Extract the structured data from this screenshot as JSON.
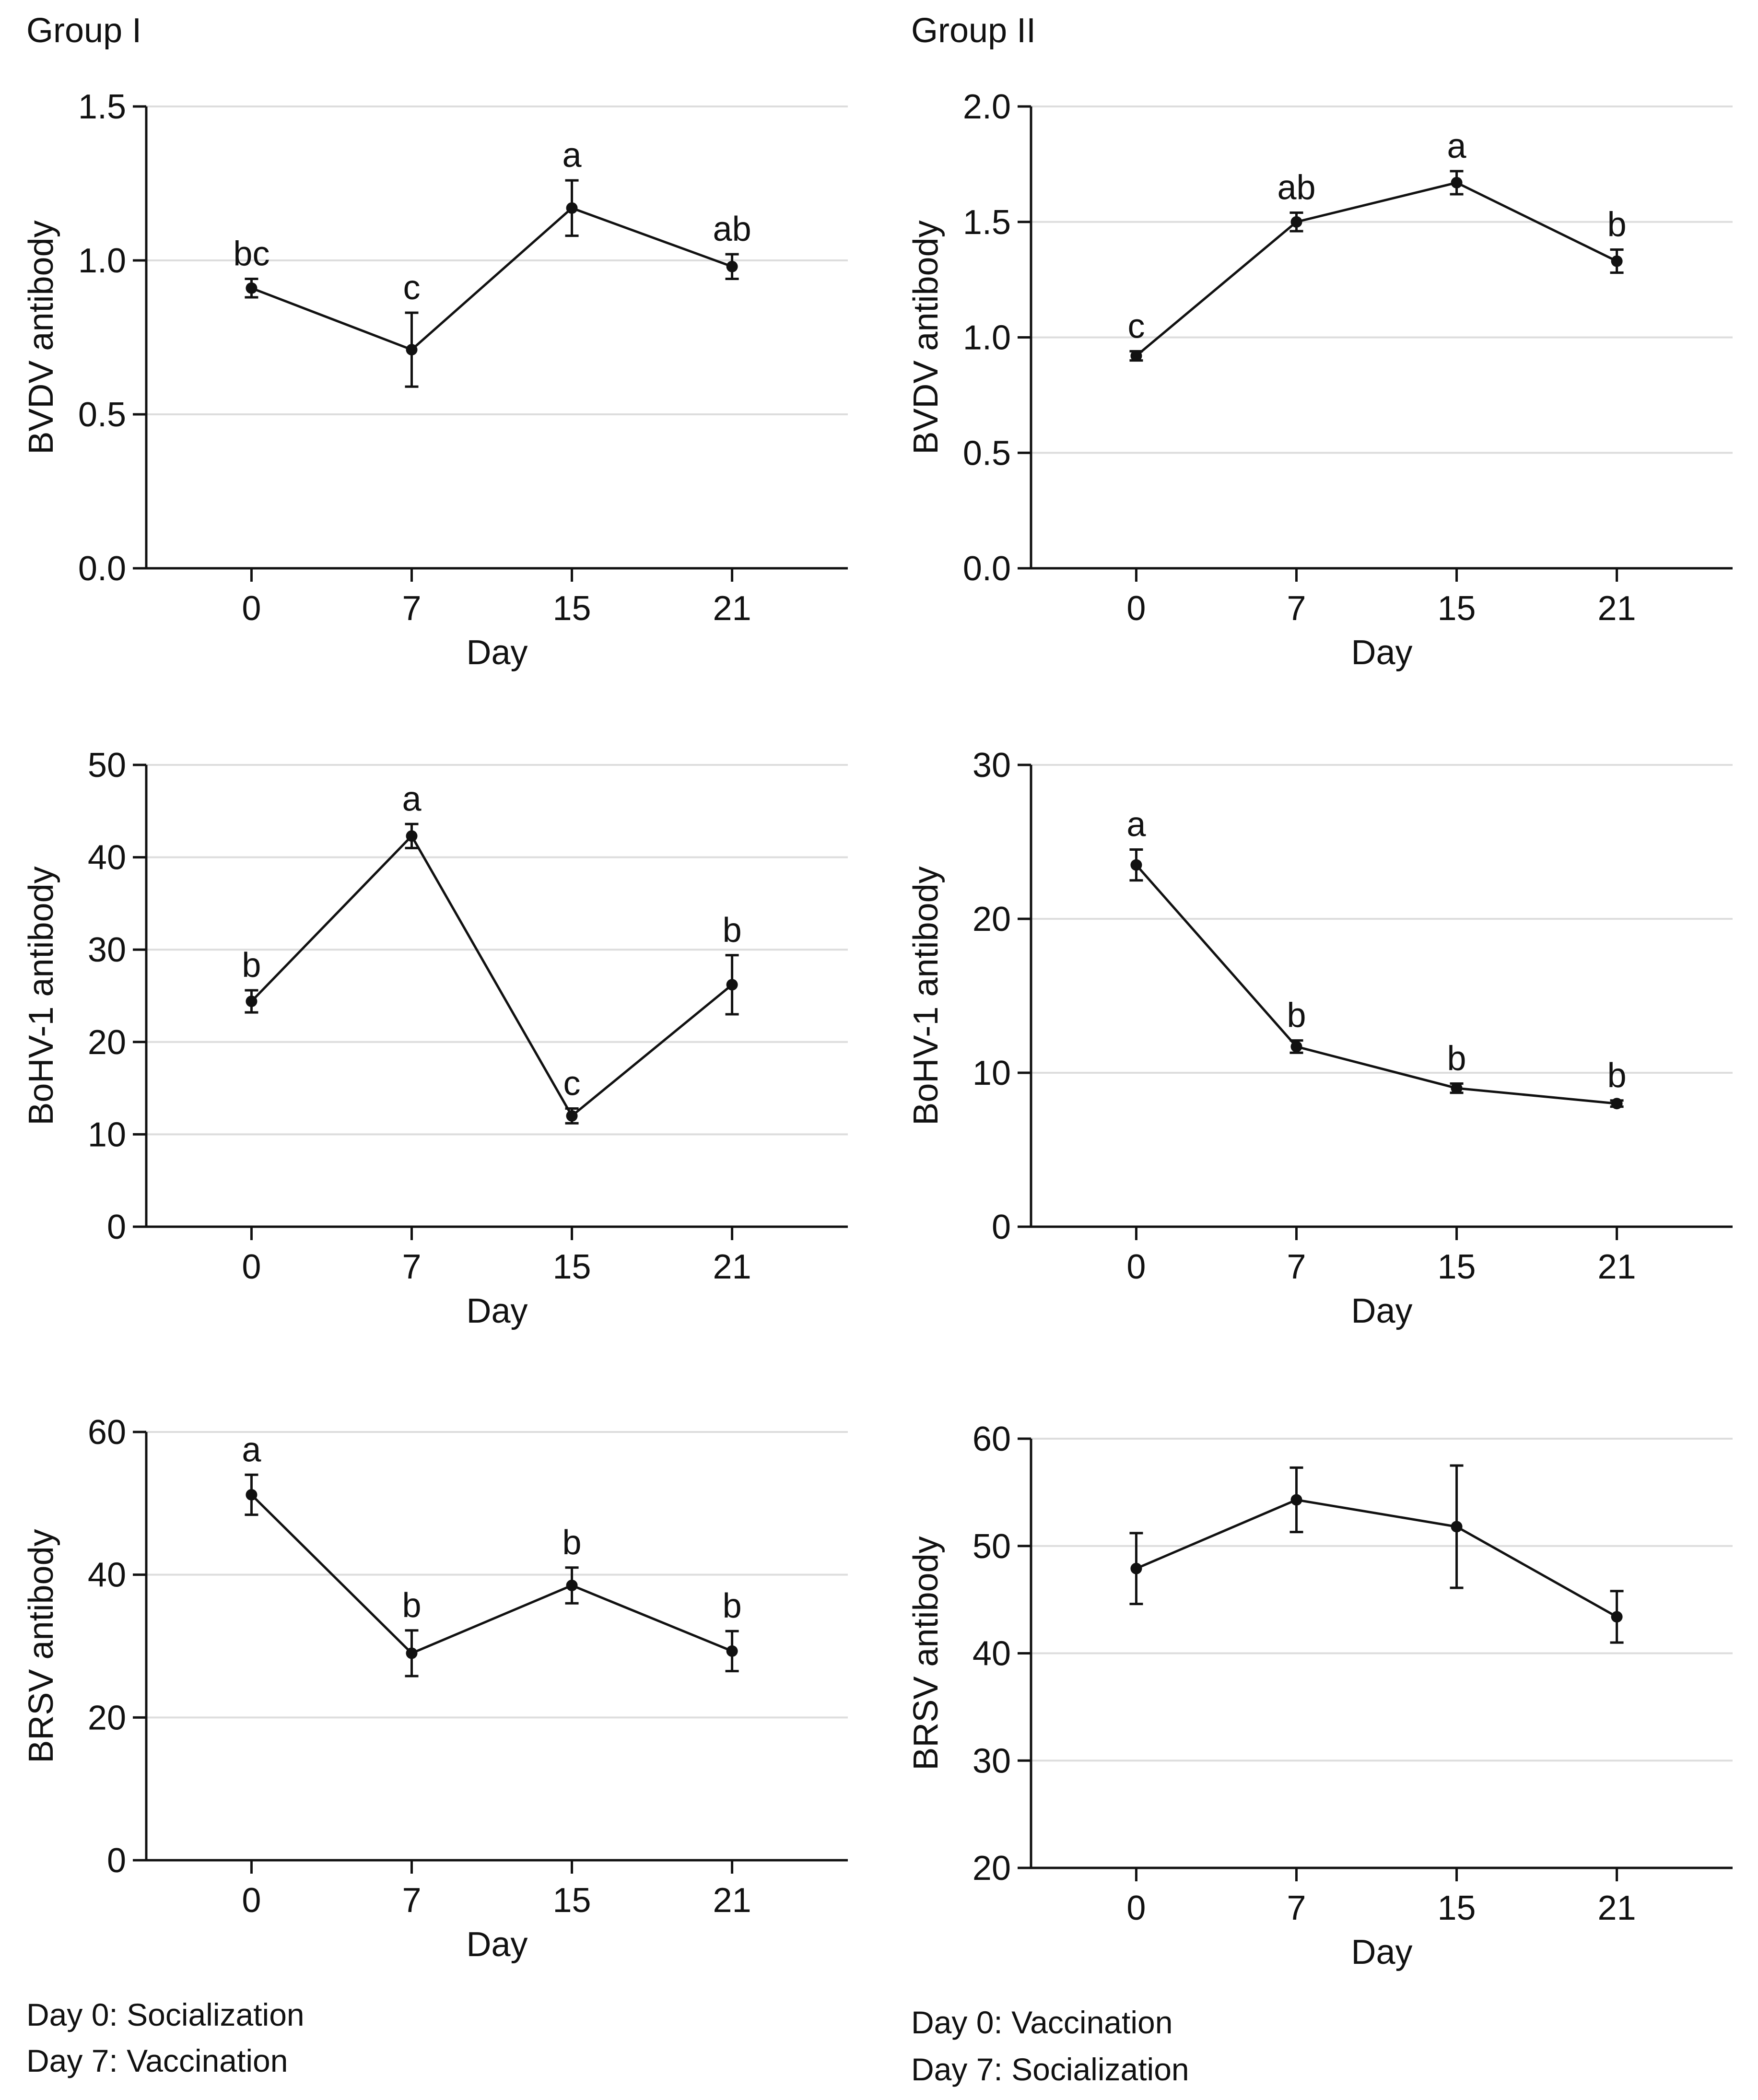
{
  "groups": [
    {
      "title": "Group I",
      "notes": [
        "Day 0: Socialization",
        "Day 7: Vaccination"
      ]
    },
    {
      "title": "Group II",
      "notes": [
        "Day 0: Vaccination",
        "Day 7: Socialization"
      ]
    }
  ],
  "chart_data": [
    {
      "id": "g1-bvdv",
      "group": "Group I",
      "type": "line",
      "xlabel": "Day",
      "ylabel": "BVDV antibody",
      "categories": [
        "0",
        "7",
        "15",
        "21"
      ],
      "ylim": [
        0,
        1.5
      ],
      "yticks": [
        "0.0",
        "0.5",
        "1.0",
        "1.5"
      ],
      "values": [
        0.91,
        0.71,
        1.17,
        0.98
      ],
      "errors": [
        0.03,
        0.12,
        0.09,
        0.04
      ],
      "letters": [
        "bc",
        "c",
        "a",
        "ab"
      ],
      "grid": true
    },
    {
      "id": "g2-bvdv",
      "group": "Group II",
      "type": "line",
      "xlabel": "Day",
      "ylabel": "BVDV antibody",
      "categories": [
        "0",
        "7",
        "15",
        "21"
      ],
      "ylim": [
        0,
        2.0
      ],
      "yticks": [
        "0.0",
        "0.5",
        "1.0",
        "1.5",
        "2.0"
      ],
      "values": [
        0.92,
        1.5,
        1.67,
        1.33
      ],
      "errors": [
        0.02,
        0.04,
        0.05,
        0.05
      ],
      "letters": [
        "c",
        "ab",
        "a",
        "b"
      ],
      "grid": true
    },
    {
      "id": "g1-bohv",
      "group": "Group I",
      "type": "line",
      "xlabel": "Day",
      "ylabel": "BoHV-1 antibody",
      "categories": [
        "0",
        "7",
        "15",
        "21"
      ],
      "ylim": [
        0,
        50
      ],
      "yticks": [
        "0",
        "10",
        "20",
        "30",
        "40",
        "50"
      ],
      "values": [
        24.4,
        42.3,
        12.0,
        26.2
      ],
      "errors": [
        1.2,
        1.3,
        0.8,
        3.2
      ],
      "letters": [
        "b",
        "a",
        "c",
        "b"
      ],
      "grid": true
    },
    {
      "id": "g2-bohv",
      "group": "Group II",
      "type": "line",
      "xlabel": "Day",
      "ylabel": "BoHV-1 antibody",
      "categories": [
        "0",
        "7",
        "15",
        "21"
      ],
      "ylim": [
        0,
        30
      ],
      "yticks": [
        "0",
        "10",
        "20",
        "30"
      ],
      "values": [
        23.5,
        11.7,
        9.0,
        8.0
      ],
      "errors": [
        1.0,
        0.4,
        0.3,
        0.2
      ],
      "letters": [
        "a",
        "b",
        "b",
        "b"
      ],
      "grid": true
    },
    {
      "id": "g1-brsv",
      "group": "Group I",
      "type": "line",
      "xlabel": "Day",
      "ylabel": "BRSV antibody",
      "categories": [
        "0",
        "7",
        "15",
        "21"
      ],
      "ylim": [
        0,
        60
      ],
      "yticks": [
        "0",
        "20",
        "40",
        "60"
      ],
      "values": [
        51.2,
        29.0,
        38.5,
        29.3
      ],
      "errors": [
        2.8,
        3.2,
        2.5,
        2.8
      ],
      "letters": [
        "a",
        "b",
        "b",
        "b"
      ],
      "grid": true
    },
    {
      "id": "g2-brsv",
      "group": "Group II",
      "type": "line",
      "xlabel": "Day",
      "ylabel": "BRSV antibody",
      "categories": [
        "0",
        "7",
        "15",
        "21"
      ],
      "ylim": [
        20,
        60
      ],
      "yticks": [
        "20",
        "30",
        "40",
        "50",
        "60"
      ],
      "values": [
        47.9,
        54.3,
        51.8,
        43.4
      ],
      "errors": [
        3.3,
        3.0,
        5.7,
        2.4
      ],
      "letters": [
        "",
        "",
        "",
        ""
      ],
      "grid": true
    }
  ]
}
